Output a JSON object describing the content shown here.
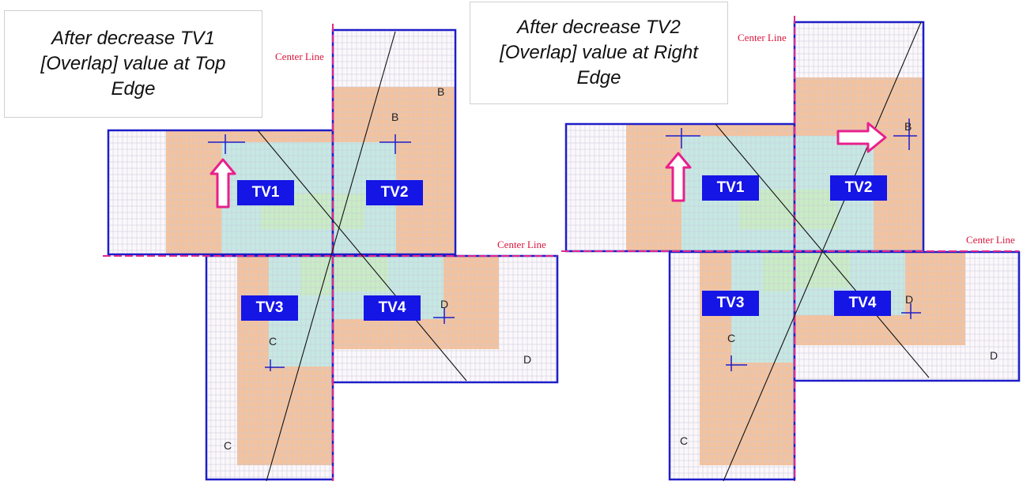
{
  "captions": {
    "left": "After decrease TV1\n[Overlap] value at Top\nEdge",
    "right": "After decrease TV2\n[Overlap] value at Right\nEdge"
  },
  "center_line_label": "Center Line",
  "tv_labels": [
    "TV1",
    "TV2",
    "TV3",
    "TV4"
  ],
  "corner_letters": [
    "B",
    "C",
    "D"
  ],
  "colors": {
    "panel_border": "#1e1ec8",
    "center_line": "#e0288c",
    "grid_line": "#c8c8d8",
    "orange": "#f2b98c",
    "cyan": "#bdeef0",
    "green": "#c9ecc0",
    "arrow": "#e8208c",
    "label_bg": "#1515e6",
    "label_text": "#ffffff",
    "center_line_text": "#d8163c"
  },
  "icons": {
    "overlap_arrow_left": "up-arrow-icon",
    "overlap_arrow_right": "right-arrow-icon"
  }
}
